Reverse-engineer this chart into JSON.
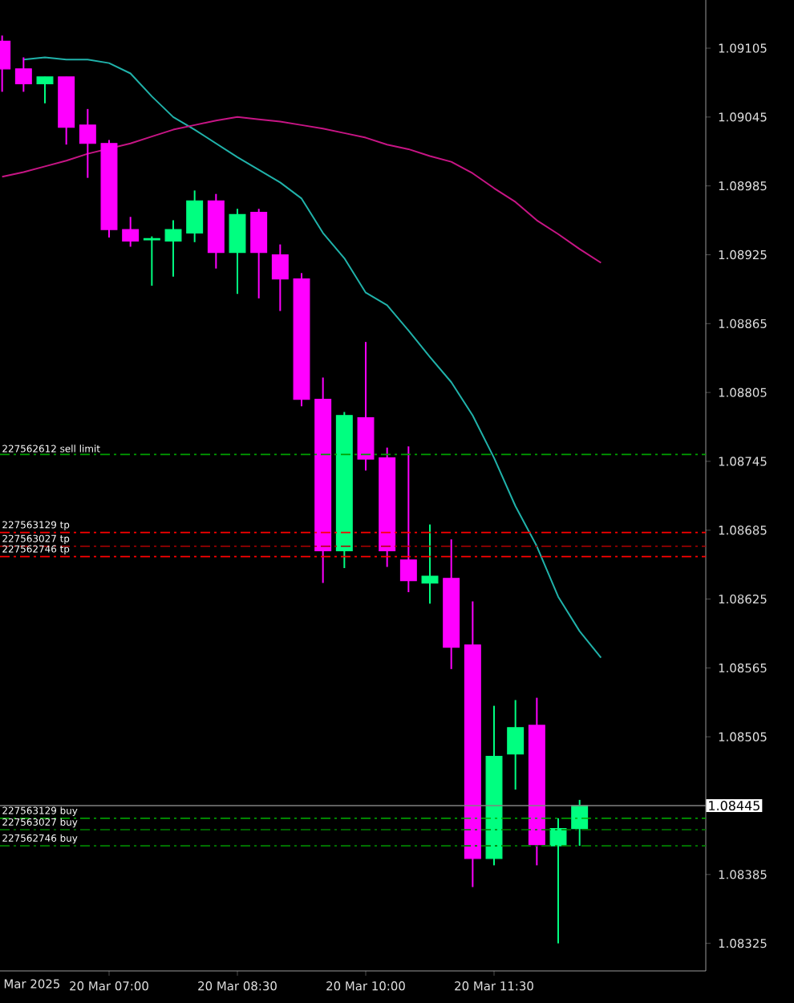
{
  "chart_data": {
    "type": "candlestick",
    "categories": [
      null,
      null,
      null,
      null,
      null,
      "20 Mar 07:00",
      null,
      null,
      null,
      null,
      null,
      "20 Mar 08:30",
      null,
      null,
      null,
      null,
      null,
      "20 Mar 10:00",
      null,
      null,
      null,
      null,
      null,
      "20 Mar 11:30",
      null,
      null,
      null,
      null,
      null
    ],
    "ohlc": [
      [
        1.09111,
        1.09116,
        1.09067,
        1.09087
      ],
      [
        1.09087,
        1.09097,
        1.09067,
        1.09074
      ],
      [
        1.09074,
        1.0908,
        1.09057,
        1.0908
      ],
      [
        1.0908,
        1.0908,
        1.09021,
        1.09036
      ],
      [
        1.09038,
        1.09052,
        1.08992,
        1.09022
      ],
      [
        1.09022,
        1.09025,
        1.0894,
        1.08947
      ],
      [
        1.08947,
        1.08958,
        1.08932,
        1.08937
      ],
      [
        1.08938,
        1.08941,
        1.08898,
        1.08939
      ],
      [
        1.08937,
        1.08955,
        1.08906,
        1.08947
      ],
      [
        1.08944,
        1.08981,
        1.08936,
        1.08972
      ],
      [
        1.08972,
        1.08978,
        1.08913,
        1.08927
      ],
      [
        1.08927,
        1.08965,
        1.08891,
        1.0896
      ],
      [
        1.08962,
        1.08965,
        1.08887,
        1.08927
      ],
      [
        1.08925,
        1.08934,
        1.08876,
        1.08904
      ],
      [
        1.08904,
        1.08909,
        1.08793,
        1.08799
      ],
      [
        1.08799,
        1.08818,
        1.08639,
        1.08667
      ],
      [
        1.08667,
        1.08788,
        1.08652,
        1.08785
      ],
      [
        1.08783,
        1.08849,
        1.08737,
        1.08747
      ],
      [
        1.08748,
        1.08757,
        1.08653,
        1.08667
      ],
      [
        1.08659,
        1.08758,
        1.08631,
        1.08641
      ],
      [
        1.08639,
        1.0869,
        1.08621,
        1.08645
      ],
      [
        1.08643,
        1.08677,
        1.08564,
        1.08583
      ],
      [
        1.08585,
        1.08623,
        1.08374,
        1.08399
      ],
      [
        1.08399,
        1.08532,
        1.08393,
        1.08488
      ],
      [
        1.0849,
        1.08537,
        1.08459,
        1.08513
      ],
      [
        1.08515,
        1.08539,
        1.08393,
        1.08411
      ],
      [
        1.0841,
        1.08434,
        1.08325,
        1.08425
      ],
      [
        1.08425,
        1.0845,
        1.0841,
        1.08445
      ],
      null
    ],
    "colors": [
      "#ff00ff",
      "#ff00ff",
      "#00ff80",
      "#ff00ff",
      "#ff00ff",
      "#ff00ff",
      "#ff00ff",
      "#00ff80",
      "#00ff80",
      "#00ff80",
      "#ff00ff",
      "#00ff80",
      "#ff00ff",
      "#ff00ff",
      "#ff00ff",
      "#ff00ff",
      "#00ff80",
      "#ff00ff",
      "#ff00ff",
      "#ff00ff",
      "#00ff80",
      "#ff00ff",
      "#ff00ff",
      "#00ff80",
      "#00ff80",
      "#ff00ff",
      "#00ff80",
      "#00ff80",
      null
    ],
    "series": [
      {
        "type": "line",
        "color": "#20b2aa",
        "values": [
          null,
          1.09095,
          1.09097,
          1.09095,
          1.09095,
          1.09092,
          1.09083,
          1.09063,
          1.09045,
          1.09034,
          1.09022,
          1.0901,
          1.08999,
          1.08988,
          1.08974,
          1.08944,
          1.08922,
          1.08892,
          1.08881,
          1.08859,
          1.08836,
          1.08814,
          1.08785,
          1.08748,
          1.08706,
          1.08671,
          1.08627,
          1.08597,
          1.08574
        ]
      },
      {
        "type": "line",
        "color": "#c71585",
        "values": [
          1.08993,
          1.08997,
          1.09002,
          1.09007,
          1.09013,
          null,
          1.09022,
          1.09028,
          1.09034,
          1.09038,
          1.09042,
          1.09045,
          1.09043,
          1.09041,
          1.09038,
          1.09035,
          1.09031,
          1.09027,
          1.09021,
          1.09017,
          1.09011,
          1.09006,
          1.08996,
          1.08983,
          1.08971,
          1.08955,
          1.08943,
          1.0893,
          1.08918
        ]
      }
    ],
    "ylim": [
      1.08301,
      1.09147
    ],
    "yticks": [
      1.09105,
      1.09045,
      1.08985,
      1.08925,
      1.08865,
      1.08805,
      1.08745,
      1.08685,
      1.08625,
      1.08565,
      1.08505,
      1.08385,
      1.08325
    ],
    "annotations": [
      "Mar 2025"
    ],
    "ref_lines": [
      {
        "axis": "y",
        "value": 1.08751,
        "label": "227562612 sell limit",
        "color": "#00a000",
        "line_style": "dashed"
      },
      {
        "axis": "y",
        "value": 1.08683,
        "label": "227563129 tp",
        "color": "#ff0000",
        "line_style": "dashed"
      },
      {
        "axis": "y",
        "value": 1.08671,
        "label": "227563027 tp",
        "color": "#b00000",
        "line_style": "dashed"
      },
      {
        "axis": "y",
        "value": 1.08662,
        "label": "227562746 tp",
        "color": "#ff0000",
        "line_style": "dashed"
      },
      {
        "axis": "y",
        "value": 1.08445,
        "label": "1.08445",
        "color": "#808080",
        "line_style": "solid"
      },
      {
        "axis": "y",
        "value": 1.08434,
        "label": "227563129 buy",
        "color": "#00b000",
        "line_style": "dashed"
      },
      {
        "axis": "y",
        "value": 1.08424,
        "label": "227563027 buy",
        "color": "#008000",
        "line_style": "dashed"
      },
      {
        "axis": "y",
        "value": 1.0841,
        "label": "227562746 buy",
        "color": "#008000",
        "line_style": "dashed"
      }
    ]
  }
}
